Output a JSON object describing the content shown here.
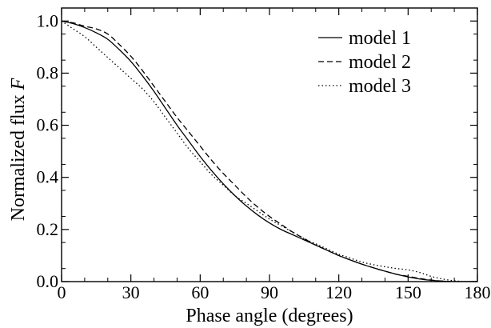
{
  "chart_data": {
    "type": "line",
    "xlabel": "Phase angle (degrees)",
    "ylabel_text": "Normalized flux ",
    "ylabel_symbol": "F",
    "xlim": [
      0,
      180
    ],
    "ylim": [
      0,
      1.05
    ],
    "x_ticks": [
      0,
      30,
      60,
      90,
      120,
      150,
      180
    ],
    "x_tick_labels": [
      "0",
      "30",
      "60",
      "90",
      "120",
      "150",
      "180"
    ],
    "y_ticks": [
      0.0,
      0.2,
      0.4,
      0.6,
      0.8,
      1.0
    ],
    "y_tick_labels": [
      "0.0",
      "0.2",
      "0.4",
      "0.6",
      "0.8",
      "1.0"
    ],
    "grid": false,
    "legend_position": "top-right",
    "series": [
      {
        "name": "model 1",
        "style": "solid",
        "x": [
          0,
          5,
          10,
          15,
          20,
          25,
          30,
          35,
          40,
          45,
          50,
          55,
          60,
          65,
          70,
          75,
          80,
          85,
          90,
          95,
          100,
          105,
          110,
          115,
          120,
          125,
          130,
          135,
          140,
          145,
          150,
          155,
          160,
          165,
          170,
          175,
          180
        ],
        "y": [
          1.0,
          0.99,
          0.975,
          0.955,
          0.93,
          0.89,
          0.845,
          0.79,
          0.73,
          0.665,
          0.6,
          0.54,
          0.48,
          0.425,
          0.375,
          0.33,
          0.29,
          0.255,
          0.225,
          0.2,
          0.18,
          0.16,
          0.14,
          0.12,
          0.1,
          0.083,
          0.067,
          0.053,
          0.04,
          0.028,
          0.018,
          0.01,
          0.005,
          0.002,
          0.0,
          0.0,
          0.0
        ]
      },
      {
        "name": "model 2",
        "style": "dashed",
        "x": [
          0,
          5,
          10,
          15,
          20,
          25,
          30,
          35,
          40,
          45,
          50,
          55,
          60,
          65,
          70,
          75,
          80,
          85,
          90,
          95,
          100,
          105,
          110,
          115,
          120,
          125,
          130,
          135,
          140,
          145,
          150,
          155,
          160,
          165,
          170,
          175,
          180
        ],
        "y": [
          1.0,
          0.993,
          0.98,
          0.97,
          0.95,
          0.91,
          0.865,
          0.81,
          0.75,
          0.69,
          0.63,
          0.575,
          0.52,
          0.465,
          0.415,
          0.37,
          0.325,
          0.285,
          0.25,
          0.22,
          0.19,
          0.165,
          0.14,
          0.12,
          0.1,
          0.083,
          0.067,
          0.053,
          0.04,
          0.028,
          0.02,
          0.012,
          0.006,
          0.002,
          0.0,
          0.0,
          0.0
        ]
      },
      {
        "name": "model 3",
        "style": "dotted",
        "x": [
          0,
          5,
          10,
          15,
          20,
          25,
          30,
          35,
          40,
          45,
          50,
          55,
          60,
          65,
          70,
          75,
          80,
          85,
          90,
          95,
          100,
          105,
          110,
          115,
          120,
          125,
          130,
          135,
          140,
          145,
          150,
          155,
          160,
          165,
          170,
          175,
          180
        ],
        "y": [
          1.0,
          0.97,
          0.94,
          0.9,
          0.86,
          0.82,
          0.78,
          0.74,
          0.69,
          0.63,
          0.57,
          0.51,
          0.46,
          0.41,
          0.37,
          0.33,
          0.3,
          0.27,
          0.24,
          0.215,
          0.19,
          0.165,
          0.145,
          0.125,
          0.105,
          0.09,
          0.075,
          0.065,
          0.057,
          0.05,
          0.045,
          0.035,
          0.02,
          0.01,
          0.003,
          0.0,
          0.0
        ]
      }
    ]
  }
}
